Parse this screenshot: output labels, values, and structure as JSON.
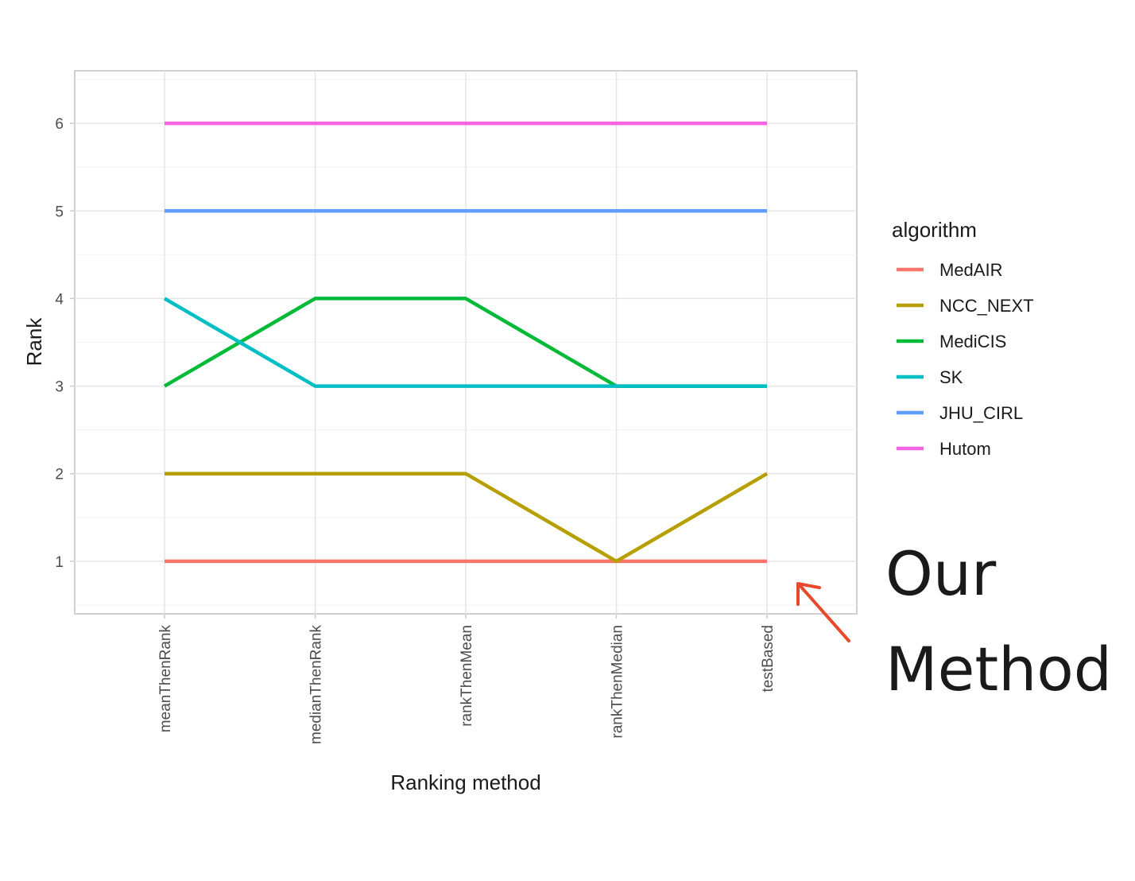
{
  "chart_data": {
    "type": "line",
    "title": "",
    "xlabel": "Ranking method",
    "ylabel": "Rank",
    "categories": [
      "meanThenRank",
      "medianThenRank",
      "rankThenMean",
      "rankThenMedian",
      "testBased"
    ],
    "ylim": [
      0.4,
      6.6
    ],
    "yticks": [
      1,
      2,
      3,
      4,
      5,
      6
    ],
    "grid": true,
    "legend": {
      "title": "algorithm",
      "placement": "right"
    },
    "series": [
      {
        "name": "MedAIR",
        "color": "#F8766D",
        "values": [
          1,
          1,
          1,
          1,
          1
        ]
      },
      {
        "name": "NCC_NEXT",
        "color": "#B79F00",
        "values": [
          2,
          2,
          2,
          1,
          2
        ]
      },
      {
        "name": "MediCIS",
        "color": "#00BA38",
        "values": [
          3,
          4,
          4,
          3,
          3
        ]
      },
      {
        "name": "SK",
        "color": "#00BFC4",
        "values": [
          4,
          3,
          3,
          3,
          3
        ]
      },
      {
        "name": "JHU_CIRL",
        "color": "#619CFF",
        "values": [
          5,
          5,
          5,
          5,
          5
        ]
      },
      {
        "name": "Hutom",
        "color": "#F564E3",
        "values": [
          6,
          6,
          6,
          6,
          6
        ]
      }
    ],
    "annotation": {
      "lines": [
        "Our",
        "Method"
      ],
      "arrow_color": "#E8492C",
      "points_to": "MedAIR at testBased"
    }
  }
}
